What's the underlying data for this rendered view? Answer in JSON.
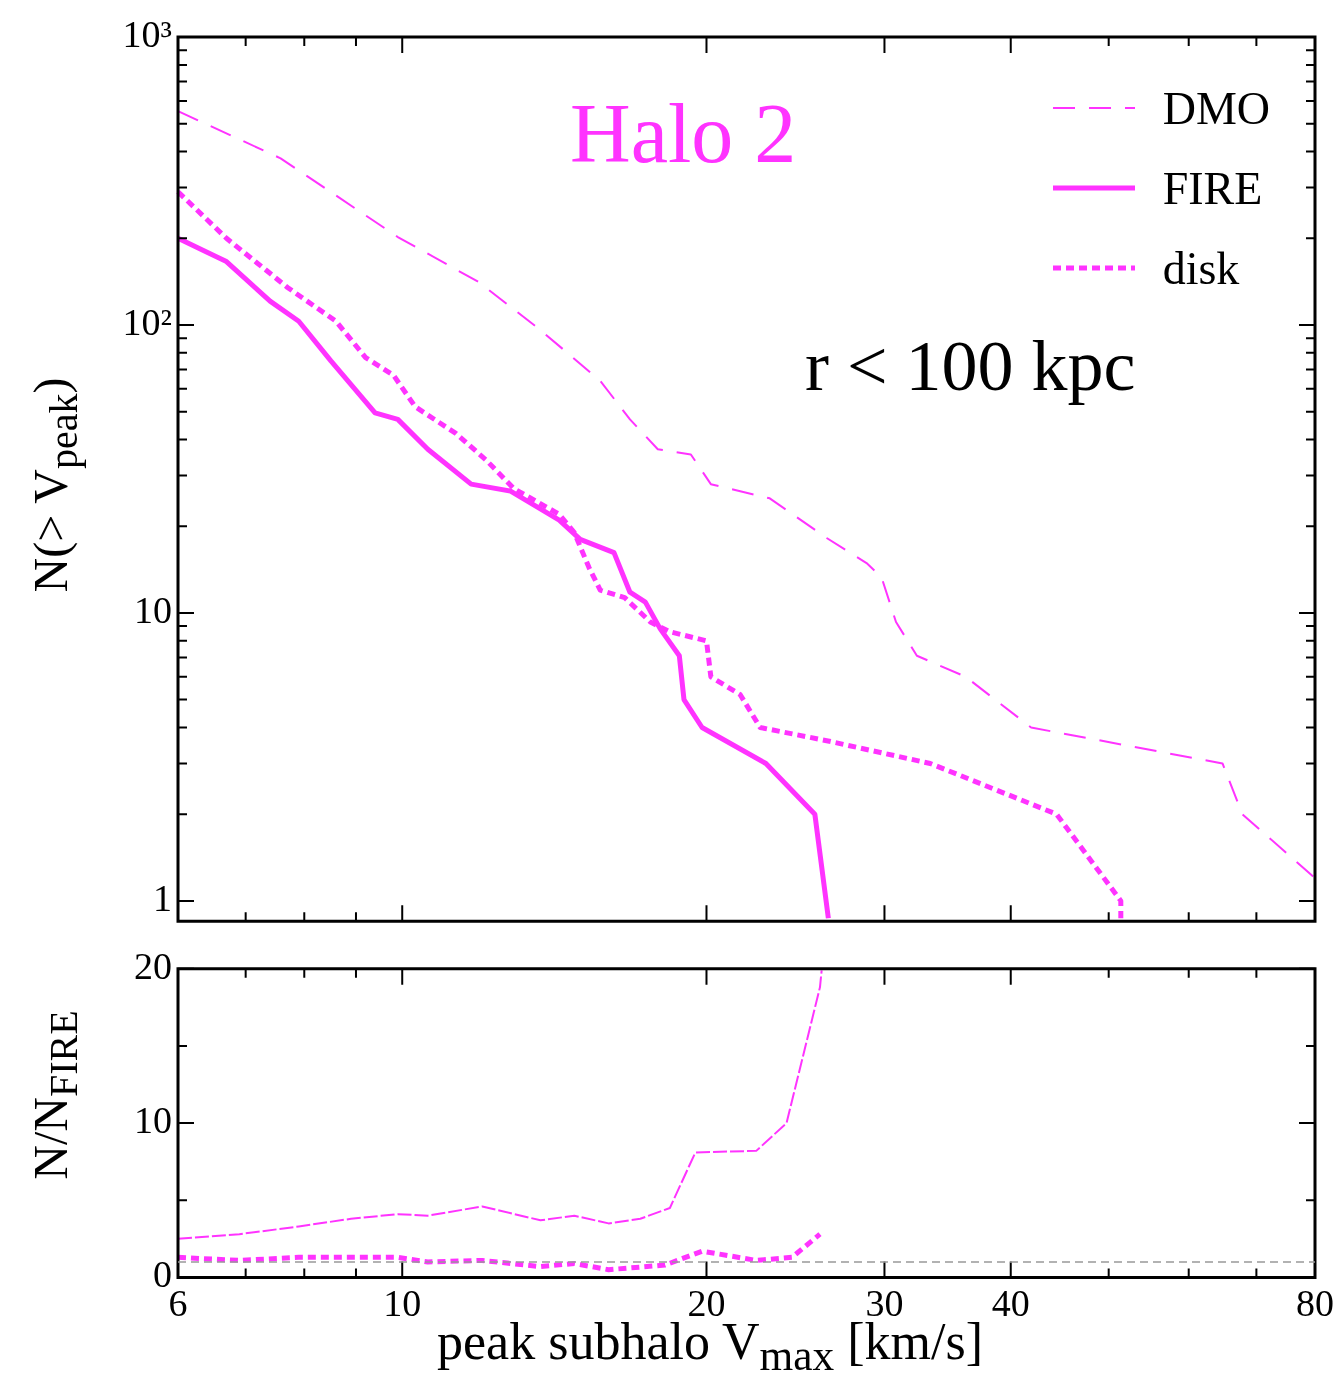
{
  "chart_data": [
    {
      "type": "line",
      "ylabel": "N(> V$_{peak}$)",
      "annotations": [
        "Halo 2",
        "r < 100 kpc"
      ],
      "log": "xy",
      "legend": "top right",
      "grid": false,
      "tick_labels": "y",
      "xlim": [
        6,
        80
      ],
      "xticks": [
        6,
        {
          "value": 7,
          "label": null
        },
        {
          "value": 8,
          "label": null
        },
        {
          "value": 9,
          "label": null
        },
        10,
        20,
        30,
        40,
        {
          "value": 50,
          "label": null
        },
        {
          "value": 60,
          "label": null
        },
        {
          "value": 70,
          "label": null
        },
        80
      ],
      "ylim": [
        0.85,
        1000
      ],
      "yticks": [
        1,
        {
          "value": 2,
          "label": null
        },
        {
          "value": 3,
          "label": null
        },
        {
          "value": 4,
          "label": null
        },
        {
          "value": 5,
          "label": null
        },
        {
          "value": 6,
          "label": null
        },
        {
          "value": 7,
          "label": null
        },
        {
          "value": 8,
          "label": null
        },
        {
          "value": 9,
          "label": null
        },
        10,
        {
          "value": 20,
          "label": null
        },
        {
          "value": 30,
          "label": null
        },
        {
          "value": 40,
          "label": null
        },
        {
          "value": 50,
          "label": null
        },
        {
          "value": 60,
          "label": null
        },
        {
          "value": 70,
          "label": null
        },
        {
          "value": 80,
          "label": null
        },
        {
          "value": 90,
          "label": null
        },
        {
          "value": 100,
          "label": "10²"
        },
        {
          "value": 200,
          "label": null
        },
        {
          "value": 300,
          "label": null
        },
        {
          "value": 400,
          "label": null
        },
        {
          "value": 500,
          "label": null
        },
        {
          "value": 600,
          "label": null
        },
        {
          "value": 700,
          "label": null
        },
        {
          "value": 800,
          "label": null
        },
        {
          "value": 900,
          "label": null
        },
        {
          "value": 1000,
          "label": "10³"
        }
      ],
      "series": [
        {
          "name": "DMO",
          "color": "#ff33ff",
          "line_style": "dashed",
          "x": [
            6,
            7.58,
            9.9,
            11.9,
            13.7,
            15.7,
            16.8,
            17.9,
            19.3,
            20.2,
            23.1,
            26.3,
            28.8,
            29.8,
            30.8,
            32.3,
            36.1,
            41.9,
            64.8,
            67.8,
            80
          ],
          "values": [
            553,
            379,
            202,
            141,
            96,
            64,
            47,
            37,
            35.5,
            28,
            25,
            18.2,
            14.9,
            13.3,
            9.3,
            7.1,
            6.0,
            4.0,
            3.0,
            2.0,
            1.2
          ]
        },
        {
          "name": "FIRE",
          "color": "#ff33ff",
          "line_style": "solid",
          "x": [
            6,
            6.7,
            7.4,
            7.9,
            8.5,
            9.4,
            9.9,
            10.6,
            11.7,
            12.8,
            14.3,
            15,
            16.2,
            16.8,
            17.4,
            18,
            18.8,
            19,
            19.8,
            22.9,
            25.6,
            26.4
          ],
          "values": [
            200,
            166,
            121,
            103,
            75,
            49.5,
            47,
            37,
            28,
            26.5,
            21,
            18,
            16.2,
            11.8,
            10.9,
            8.8,
            7.1,
            5.0,
            4.0,
            3.0,
            2.0,
            0.87
          ]
        },
        {
          "name": "disk",
          "color": "#ff33ff",
          "line_style": "dotted",
          "x": [
            6,
            6.7,
            7.7,
            8.6,
            9.2,
            9.8,
            10.3,
            11.3,
            12.1,
            12.9,
            14.3,
            14.8,
            15.3,
            15.7,
            16.6,
            17.6,
            18.4,
            20,
            20.2,
            21.6,
            22.6,
            26.3,
            33.3,
            44.4,
            51.4,
            51.4
          ],
          "values": [
            290,
            200,
            135,
            103,
            77,
            67,
            52,
            42,
            34,
            27,
            22,
            19,
            14.4,
            12,
            11.3,
            9.3,
            8.6,
            8.0,
            6.0,
            5.2,
            4.0,
            3.6,
            3.0,
            2.0,
            1.0,
            0.87
          ]
        }
      ]
    },
    {
      "type": "line",
      "ylabel": "N/N$_{FIRE}$",
      "xlabel": "peak subhalo V$_{max}$ [km/s]",
      "log": "x",
      "grid": false,
      "xlim": [
        6,
        80
      ],
      "xticks": [
        6,
        {
          "value": 7,
          "label": null
        },
        {
          "value": 8,
          "label": null
        },
        {
          "value": 9,
          "label": null
        },
        10,
        20,
        30,
        40,
        {
          "value": 50,
          "label": null
        },
        {
          "value": 60,
          "label": null
        },
        {
          "value": 70,
          "label": null
        },
        80
      ],
      "ylim": [
        0,
        20
      ],
      "yticks": [
        0,
        {
          "value": 5,
          "label": null
        },
        10,
        {
          "value": 15,
          "label": null
        },
        20
      ],
      "ref_lines": [
        {
          "axis": "y",
          "value": 1,
          "color": "#999999",
          "line_style": "dotted"
        }
      ],
      "series": [
        {
          "color": "#ff33ff",
          "line_style": "dashed",
          "x": [
            6,
            6.9,
            7.9,
            8.9,
            9.9,
            10.6,
            12,
            13.7,
            14.8,
            16,
            17.2,
            18.4,
            19.5,
            22.4,
            24,
            25.9,
            26
          ],
          "values": [
            2.5,
            2.8,
            3.3,
            3.8,
            4.1,
            4.0,
            4.6,
            3.7,
            4.0,
            3.5,
            3.8,
            4.5,
            8.1,
            8.2,
            10.0,
            18.8,
            19.9
          ]
        },
        {
          "color": "#ff33ff",
          "line_style": "dotted",
          "x": [
            6,
            6.9,
            7.9,
            9.9,
            10.6,
            12,
            13.7,
            14.8,
            16,
            18.2,
            19.8,
            22.4,
            24.3,
            25.9
          ],
          "values": [
            1.3,
            1.1,
            1.3,
            1.3,
            1.0,
            1.1,
            0.7,
            0.9,
            0.5,
            0.8,
            1.7,
            1.1,
            1.3,
            2.8
          ]
        }
      ]
    }
  ]
}
